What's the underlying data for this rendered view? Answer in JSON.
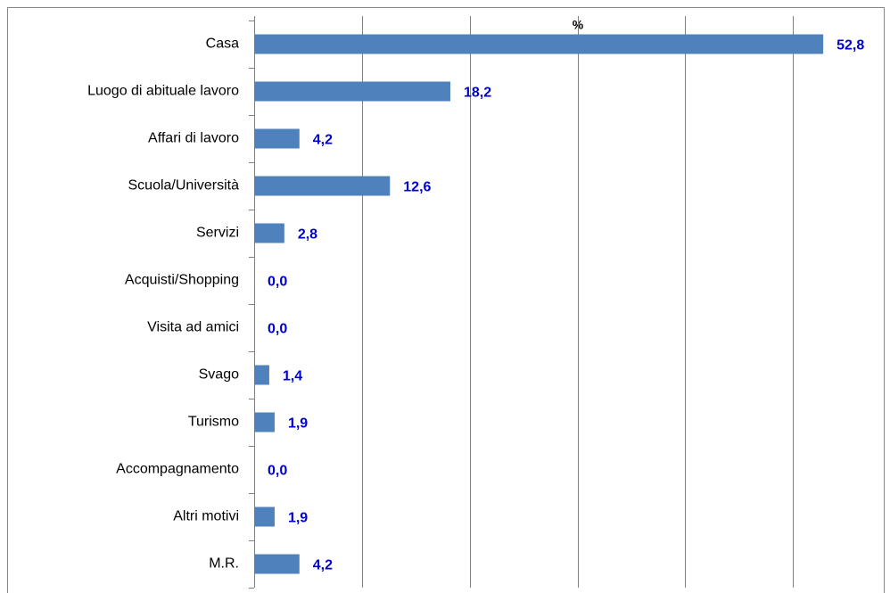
{
  "chart_data": {
    "type": "bar",
    "orientation": "horizontal",
    "title": "%",
    "categories": [
      "Casa",
      "Luogo di abituale lavoro",
      "Affari di lavoro",
      "Scuola/Università",
      "Servizi",
      "Acquisti/Shopping",
      "Visita ad amici",
      "Svago",
      "Turismo",
      "Accompagnamento",
      "Altri motivi",
      "M.R."
    ],
    "values": [
      52.8,
      18.2,
      4.2,
      12.6,
      2.8,
      0.0,
      0.0,
      1.4,
      1.9,
      0.0,
      1.9,
      4.2
    ],
    "value_labels": [
      "52,8",
      "18,2",
      "4,2",
      "12,6",
      "2,8",
      "0,0",
      "0,0",
      "1,4",
      "1,9",
      "0,0",
      "1,9",
      "4,2"
    ],
    "color": "#4f81bd",
    "xlim": [
      0,
      58.5
    ],
    "xticks": [
      0,
      10,
      20,
      30,
      40,
      50
    ],
    "grid": true
  }
}
